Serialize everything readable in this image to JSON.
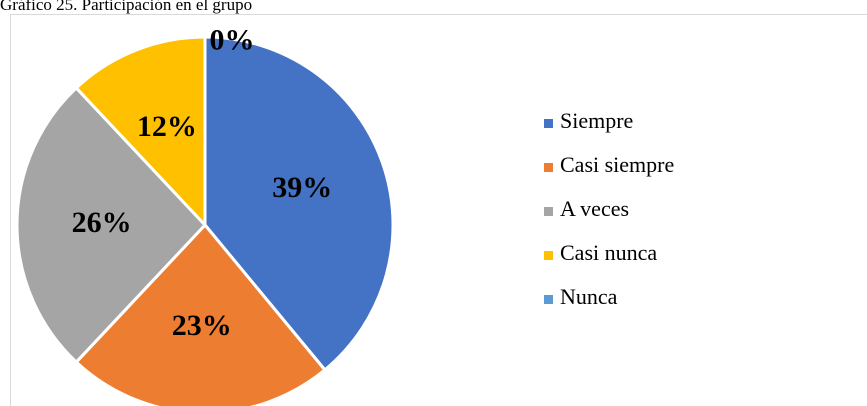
{
  "chart_data": {
    "type": "pie",
    "title": "Gráfico 25. Participación en el grupo",
    "categories": [
      "Siempre",
      "Casi siempre",
      "A veces",
      "Casi nunca",
      "Nunca"
    ],
    "values": [
      39,
      23,
      26,
      12,
      0
    ],
    "value_labels": [
      "39%",
      "23%",
      "26%",
      "12%",
      "0%"
    ],
    "colors": [
      "#4472c4",
      "#ed7d31",
      "#a5a5a5",
      "#ffc000",
      "#5b9bd5"
    ],
    "legend": "right"
  }
}
